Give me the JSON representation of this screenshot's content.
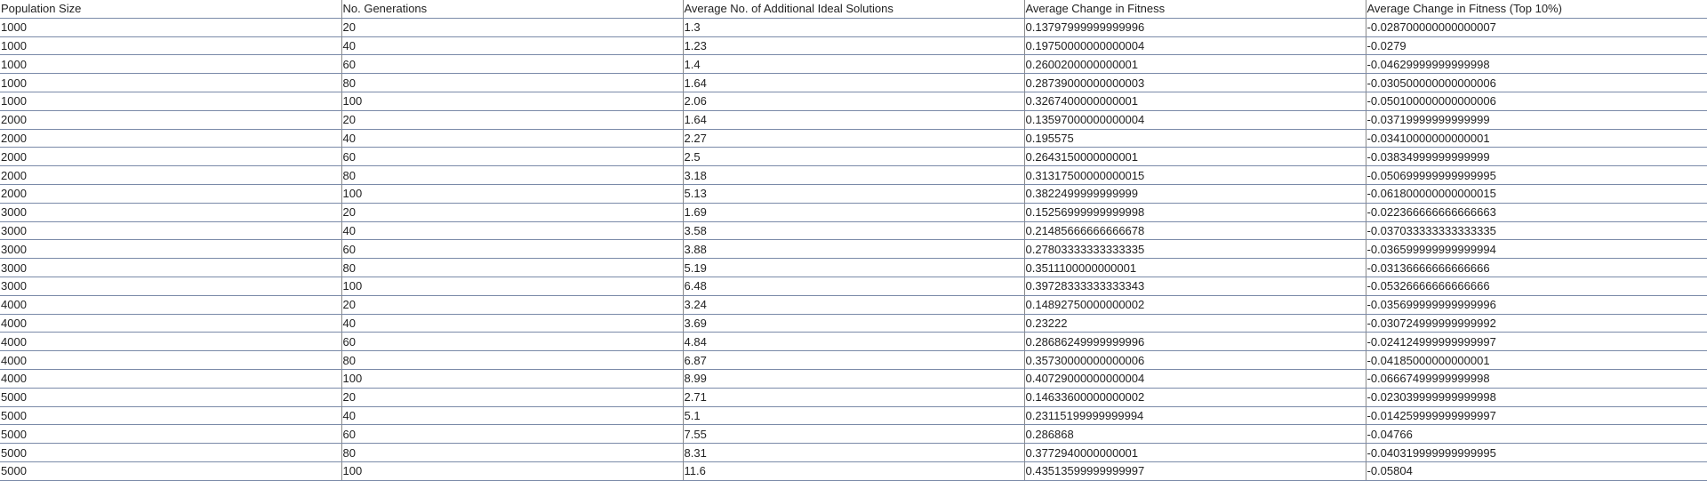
{
  "table": {
    "headers": [
      "Population Size",
      "No. Generations",
      "Average No. of Additional Ideal Solutions",
      "Average Change in Fitness",
      "Average Change in Fitness (Top 10%)"
    ],
    "rows": [
      [
        "1000",
        "20",
        "1.3",
        "0.13797999999999996",
        "-0.028700000000000007"
      ],
      [
        "1000",
        "40",
        "1.23",
        "0.19750000000000004",
        "-0.0279"
      ],
      [
        "1000",
        "60",
        "1.4",
        "0.2600200000000001",
        "-0.04629999999999998"
      ],
      [
        "1000",
        "80",
        "1.64",
        "0.28739000000000003",
        "-0.030500000000000006"
      ],
      [
        "1000",
        "100",
        "2.06",
        "0.3267400000000001",
        "-0.050100000000000006"
      ],
      [
        "2000",
        "20",
        "1.64",
        "0.13597000000000004",
        "-0.03719999999999999"
      ],
      [
        "2000",
        "40",
        "2.27",
        "0.195575",
        "-0.03410000000000001"
      ],
      [
        "2000",
        "60",
        "2.5",
        "0.2643150000000001",
        "-0.03834999999999999"
      ],
      [
        "2000",
        "80",
        "3.18",
        "0.31317500000000015",
        "-0.050699999999999995"
      ],
      [
        "2000",
        "100",
        "5.13",
        "0.3822499999999999",
        "-0.061800000000000015"
      ],
      [
        "3000",
        "20",
        "1.69",
        "0.15256999999999998",
        "-0.022366666666666663"
      ],
      [
        "3000",
        "40",
        "3.58",
        "0.21485666666666678",
        "-0.037033333333333335"
      ],
      [
        "3000",
        "60",
        "3.88",
        "0.27803333333333335",
        "-0.036599999999999994"
      ],
      [
        "3000",
        "80",
        "5.19",
        "0.3511100000000001",
        "-0.03136666666666666"
      ],
      [
        "3000",
        "100",
        "6.48",
        "0.39728333333333343",
        "-0.05326666666666666"
      ],
      [
        "4000",
        "20",
        "3.24",
        "0.14892750000000002",
        "-0.035699999999999996"
      ],
      [
        "4000",
        "40",
        "3.69",
        "0.23222",
        "-0.030724999999999992"
      ],
      [
        "4000",
        "60",
        "4.84",
        "0.28686249999999996",
        "-0.024124999999999997"
      ],
      [
        "4000",
        "80",
        "6.87",
        "0.35730000000000006",
        "-0.04185000000000001"
      ],
      [
        "4000",
        "100",
        "8.99",
        "0.40729000000000004",
        "-0.06667499999999998"
      ],
      [
        "5000",
        "20",
        "2.71",
        "0.14633600000000002",
        "-0.023039999999999998"
      ],
      [
        "5000",
        "40",
        "5.1",
        "0.23115199999999994",
        "-0.014259999999999997"
      ],
      [
        "5000",
        "60",
        "7.55",
        "0.286868",
        "-0.04766"
      ],
      [
        "5000",
        "80",
        "8.31",
        "0.3772940000000001",
        "-0.040319999999999995"
      ],
      [
        "5000",
        "100",
        "11.6",
        "0.43513599999999997",
        "-0.05804"
      ]
    ]
  }
}
